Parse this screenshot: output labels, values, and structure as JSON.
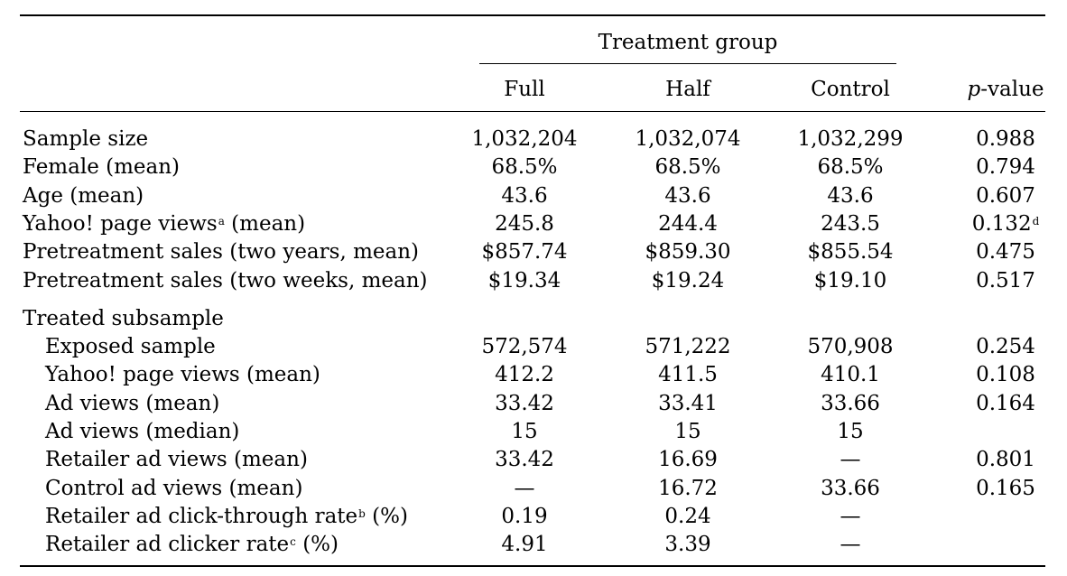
{
  "header": {
    "group_title": "Treatment group",
    "col_full": "Full",
    "col_half": "Half",
    "col_control": "Control",
    "col_p_italic": "p",
    "col_p_rest": "-value"
  },
  "rows": [
    {
      "label": "Sample size",
      "sup": "",
      "label_tail": "",
      "full": "1,032,204",
      "half": "1,032,074",
      "control": "1,032,299",
      "p": "0.988",
      "p_sup": ""
    },
    {
      "label": "Female (mean)",
      "sup": "",
      "label_tail": "",
      "full": "68.5%",
      "half": "68.5%",
      "control": "68.5%",
      "p": "0.794",
      "p_sup": ""
    },
    {
      "label": "Age (mean)",
      "sup": "",
      "label_tail": "",
      "full": "43.6",
      "half": "43.6",
      "control": "43.6",
      "p": "0.607",
      "p_sup": ""
    },
    {
      "label": "Yahoo! page views",
      "sup": "a",
      "label_tail": " (mean)",
      "full": "245.8",
      "half": "244.4",
      "control": "243.5",
      "p": "0.132",
      "p_sup": "d"
    },
    {
      "label": "Pretreatment sales (two years, mean)",
      "sup": "",
      "label_tail": "",
      "full": "$857.74",
      "half": "$859.30",
      "control": "$855.54",
      "p": "0.475",
      "p_sup": ""
    },
    {
      "label": "Pretreatment sales (two weeks, mean)",
      "sup": "",
      "label_tail": "",
      "full": "$19.34",
      "half": "$19.24",
      "control": "$19.10",
      "p": "0.517",
      "p_sup": ""
    }
  ],
  "subsection_title": "Treated subsample",
  "subrows": [
    {
      "label": "Exposed sample",
      "sup": "",
      "label_tail": "",
      "full": "572,574",
      "half": "571,222",
      "control": "570,908",
      "p": "0.254"
    },
    {
      "label": "Yahoo! page views (mean)",
      "sup": "",
      "label_tail": "",
      "full": "412.2",
      "half": "411.5",
      "control": "410.1",
      "p": "0.108"
    },
    {
      "label": "Ad views (mean)",
      "sup": "",
      "label_tail": "",
      "full": "33.42",
      "half": "33.41",
      "control": "33.66",
      "p": "0.164"
    },
    {
      "label": "Ad views (median)",
      "sup": "",
      "label_tail": "",
      "full": "15",
      "half": "15",
      "control": "15",
      "p": ""
    },
    {
      "label": "Retailer ad views (mean)",
      "sup": "",
      "label_tail": "",
      "full": "33.42",
      "half": "16.69",
      "control": "—",
      "p": "0.801"
    },
    {
      "label": "Control ad views (mean)",
      "sup": "",
      "label_tail": "",
      "full": "—",
      "half": "16.72",
      "control": "33.66",
      "p": "0.165"
    },
    {
      "label": "Retailer ad click-through rate",
      "sup": "b",
      "label_tail": " (%)",
      "full": "0.19",
      "half": "0.24",
      "control": "—",
      "p": ""
    },
    {
      "label": "Retailer ad clicker rate",
      "sup": "c",
      "label_tail": " (%)",
      "full": "4.91",
      "half": "3.39",
      "control": "—",
      "p": ""
    }
  ]
}
